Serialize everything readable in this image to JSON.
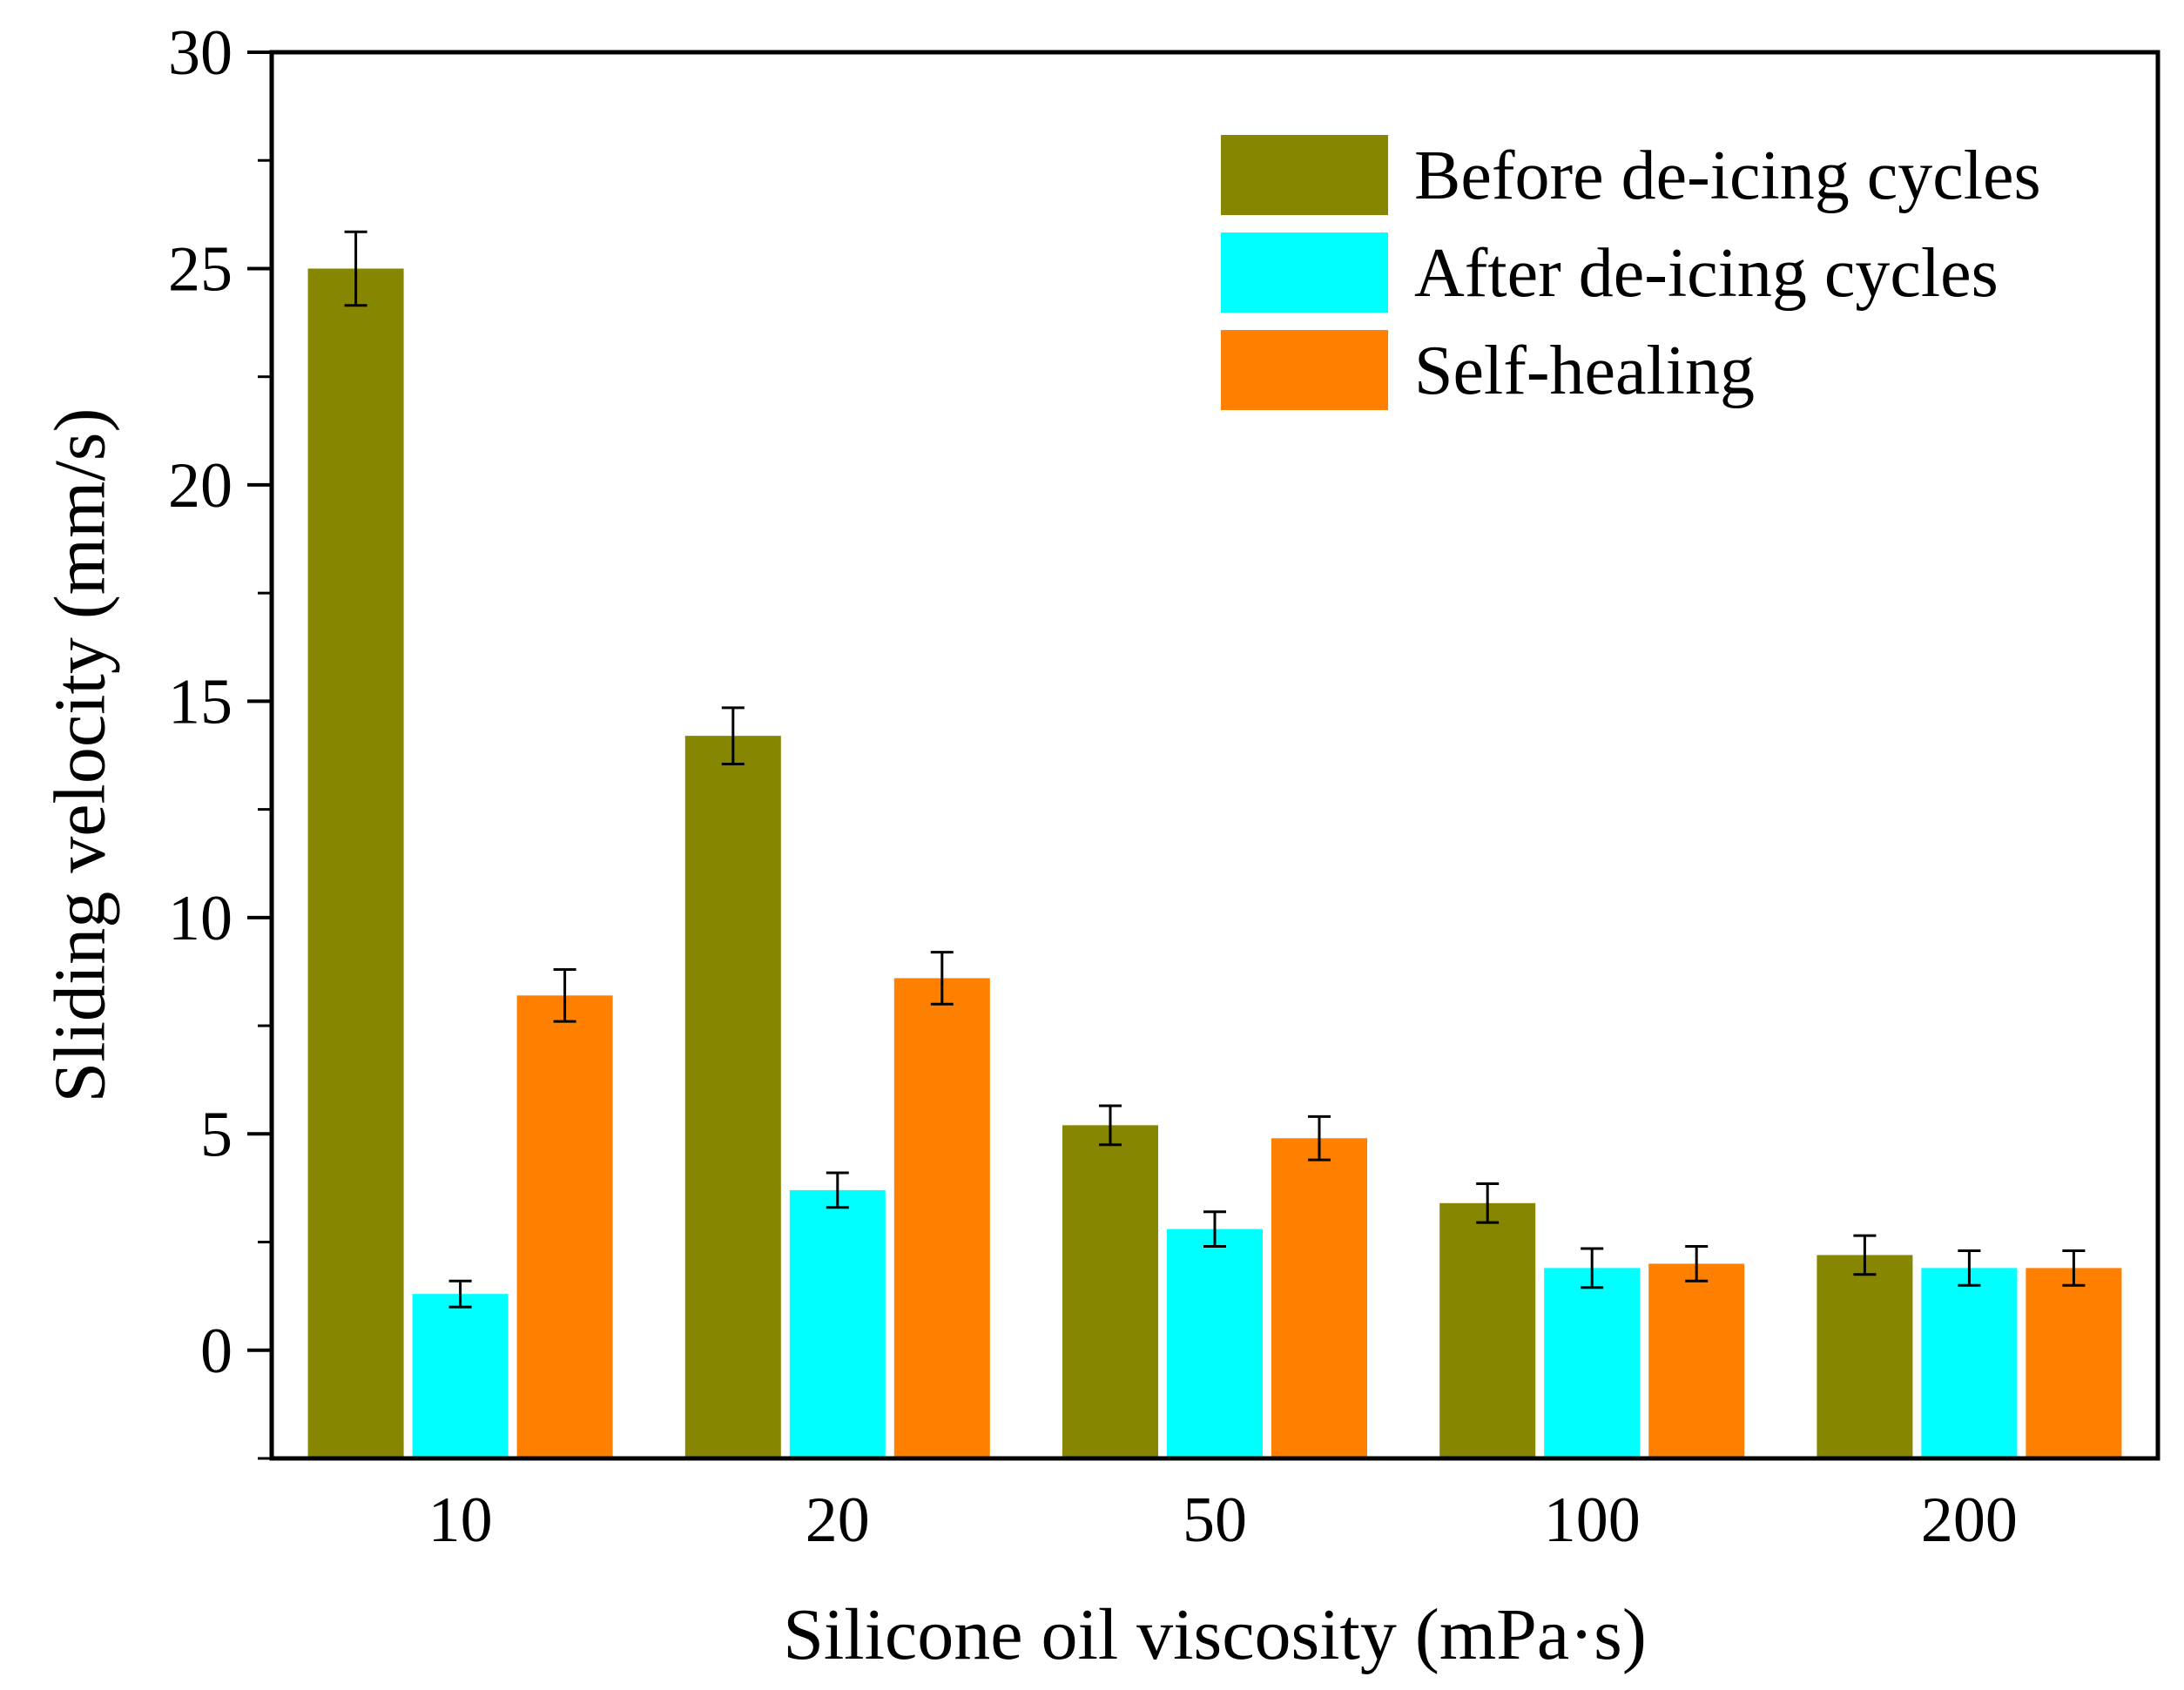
{
  "chart_data": {
    "type": "bar",
    "title": "",
    "xlabel": "Silicone oil viscosity (mPa·s)",
    "ylabel": "Sliding velocity (mm/s)",
    "categories": [
      "10",
      "20",
      "50",
      "100",
      "200"
    ],
    "ylim": [
      -2.5,
      30
    ],
    "yticks": [
      0,
      5,
      10,
      15,
      20,
      25,
      30
    ],
    "grid": false,
    "legend_position": "top-right",
    "series": [
      {
        "name": "Before de-icing cycles",
        "color": "#868600",
        "values": [
          25.0,
          14.2,
          5.2,
          3.4,
          2.2
        ],
        "errors": [
          0.85,
          0.65,
          0.45,
          0.45,
          0.45
        ]
      },
      {
        "name": "After de-icing cycles",
        "color": "#00FFFF",
        "values": [
          1.3,
          3.7,
          2.8,
          1.9,
          1.9
        ],
        "errors": [
          0.3,
          0.4,
          0.4,
          0.45,
          0.4
        ]
      },
      {
        "name": "Self-healing",
        "color": "#FF8000",
        "values": [
          8.2,
          8.6,
          4.9,
          2.0,
          1.9
        ],
        "errors": [
          0.6,
          0.6,
          0.5,
          0.4,
          0.4
        ]
      }
    ]
  }
}
